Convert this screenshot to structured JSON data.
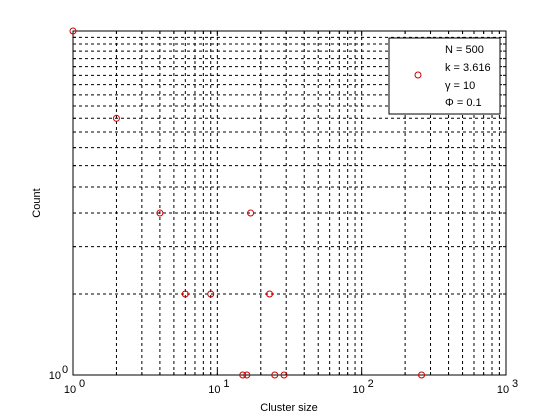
{
  "chart_data": {
    "type": "scatter",
    "title": "",
    "xlabel": "Cluster size",
    "ylabel": "Count",
    "x_scale": "log",
    "y_scale": "log",
    "xlim": [
      1,
      1000
    ],
    "ylim": [
      1,
      19
    ],
    "grid": true,
    "x_ticks": [
      {
        "base": "10",
        "exp": "0",
        "value": 1
      },
      {
        "base": "10",
        "exp": "1",
        "value": 10
      },
      {
        "base": "10",
        "exp": "2",
        "value": 100
      },
      {
        "base": "10",
        "exp": "3",
        "value": 1000
      }
    ],
    "y_ticks": [
      {
        "base": "10",
        "exp": "0",
        "value": 1
      }
    ],
    "series": [
      {
        "marker": "circle",
        "color": "#cc0000",
        "points": [
          {
            "x": 1,
            "y": 19
          },
          {
            "x": 2,
            "y": 9
          },
          {
            "x": 4,
            "y": 4
          },
          {
            "x": 6,
            "y": 2
          },
          {
            "x": 9,
            "y": 2
          },
          {
            "x": 17,
            "y": 4
          },
          {
            "x": 23,
            "y": 2
          },
          {
            "x": 15,
            "y": 1
          },
          {
            "x": 16,
            "y": 1
          },
          {
            "x": 25,
            "y": 1
          },
          {
            "x": 29,
            "y": 1
          },
          {
            "x": 260,
            "y": 1
          }
        ]
      }
    ],
    "legend": {
      "placement": "top-right",
      "entries": [
        "N = 500",
        "k = 3.616",
        "γ = 10",
        "Φ = 0.1"
      ]
    },
    "colors": {
      "marker": "#cc0000",
      "grid": "#000000",
      "axes": "#000000"
    }
  }
}
